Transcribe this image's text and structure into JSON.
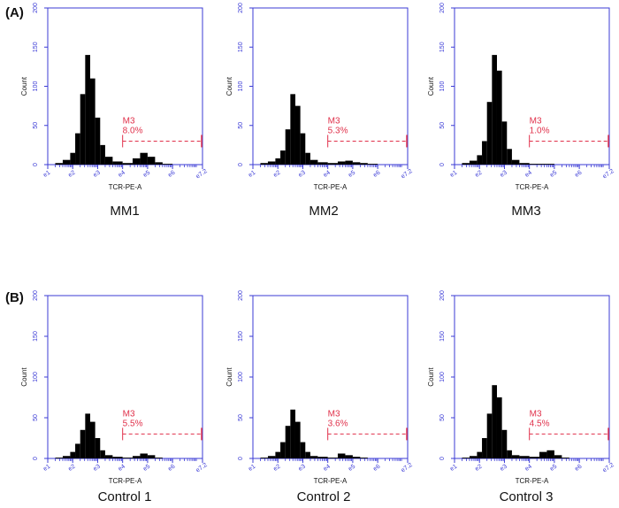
{
  "panel_labels": [
    "(A)",
    "(B)"
  ],
  "colors": {
    "axis": "#3b3bd6",
    "histogram": "#000000",
    "gate": "#e0304a"
  },
  "chart_data": [
    {
      "type": "histogram",
      "title": "MM1",
      "xlabel": "TCR-PE-A",
      "ylabel": "Count",
      "xscale": "log",
      "xlim": [
        1,
        7.2
      ],
      "ylim": [
        0,
        200
      ],
      "x_ticks": [
        "e1",
        "e2",
        "e3",
        "e4",
        "e5",
        "e6",
        "e7.2"
      ],
      "y_ticks": [
        "0",
        "50",
        "100",
        "150",
        "200"
      ],
      "gate": {
        "name": "M3",
        "percent": "8.0%",
        "x_range": [
          4,
          7.2
        ]
      },
      "histogram": {
        "x": [
          1.0,
          1.3,
          1.6,
          1.9,
          2.1,
          2.3,
          2.5,
          2.7,
          2.9,
          3.1,
          3.3,
          3.6,
          4.0,
          4.4,
          4.7,
          5.0,
          5.3,
          5.6,
          6.0
        ],
        "counts": [
          0,
          2,
          6,
          15,
          40,
          90,
          140,
          110,
          60,
          25,
          10,
          4,
          2,
          8,
          15,
          10,
          3,
          1,
          0
        ]
      }
    },
    {
      "type": "histogram",
      "title": "MM2",
      "xlabel": "TCR-PE-A",
      "ylabel": "Count",
      "xscale": "log",
      "xlim": [
        1,
        7.2
      ],
      "ylim": [
        0,
        200
      ],
      "x_ticks": [
        "e1",
        "e2",
        "e3",
        "e4",
        "e5",
        "e6",
        "e7.2"
      ],
      "y_ticks": [
        "0",
        "50",
        "100",
        "150",
        "200"
      ],
      "gate": {
        "name": "M3",
        "percent": "5.3%",
        "x_range": [
          4,
          7.2
        ]
      },
      "histogram": {
        "x": [
          1.0,
          1.3,
          1.6,
          1.9,
          2.1,
          2.3,
          2.5,
          2.7,
          2.9,
          3.1,
          3.3,
          3.6,
          4.0,
          4.4,
          4.7,
          5.0,
          5.3,
          5.6,
          6.0
        ],
        "counts": [
          0,
          2,
          4,
          8,
          18,
          45,
          90,
          75,
          40,
          15,
          6,
          3,
          2,
          4,
          5,
          3,
          2,
          1,
          0
        ]
      }
    },
    {
      "type": "histogram",
      "title": "MM3",
      "xlabel": "TCR-PE-A",
      "ylabel": "Count",
      "xscale": "log",
      "xlim": [
        1,
        7.2
      ],
      "ylim": [
        0,
        200
      ],
      "x_ticks": [
        "e1",
        "e2",
        "e3",
        "e4",
        "e5",
        "e6",
        "e7.2"
      ],
      "y_ticks": [
        "0",
        "50",
        "100",
        "150",
        "200"
      ],
      "gate": {
        "name": "M3",
        "percent": "1.0%",
        "x_range": [
          4,
          7.2
        ]
      },
      "histogram": {
        "x": [
          1.0,
          1.3,
          1.6,
          1.9,
          2.1,
          2.3,
          2.5,
          2.7,
          2.9,
          3.1,
          3.3,
          3.6,
          4.0,
          4.4,
          4.7,
          5.0,
          5.3,
          5.6,
          6.0
        ],
        "counts": [
          0,
          2,
          5,
          12,
          30,
          80,
          140,
          120,
          55,
          20,
          6,
          2,
          1,
          1,
          1,
          0,
          0,
          0,
          0
        ]
      }
    },
    {
      "type": "histogram",
      "title": "Control 1",
      "xlabel": "TCR-PE-A",
      "ylabel": "Count",
      "xscale": "log",
      "xlim": [
        1,
        7.2
      ],
      "ylim": [
        0,
        200
      ],
      "x_ticks": [
        "e1",
        "e2",
        "e3",
        "e4",
        "e5",
        "e6",
        "e7.2"
      ],
      "y_ticks": [
        "0",
        "50",
        "100",
        "150",
        "200"
      ],
      "gate": {
        "name": "M3",
        "percent": "5.5%",
        "x_range": [
          4,
          7.2
        ]
      },
      "histogram": {
        "x": [
          1.0,
          1.3,
          1.6,
          1.9,
          2.1,
          2.3,
          2.5,
          2.7,
          2.9,
          3.1,
          3.3,
          3.6,
          4.0,
          4.4,
          4.7,
          5.0,
          5.3,
          5.6,
          6.0
        ],
        "counts": [
          0,
          1,
          3,
          8,
          18,
          35,
          55,
          45,
          25,
          10,
          4,
          2,
          1,
          3,
          6,
          4,
          1,
          0,
          0
        ]
      }
    },
    {
      "type": "histogram",
      "title": "Control 2",
      "xlabel": "TCR-PE-A",
      "ylabel": "Count",
      "xscale": "log",
      "xlim": [
        1,
        7.2
      ],
      "ylim": [
        0,
        200
      ],
      "x_ticks": [
        "e1",
        "e2",
        "e3",
        "e4",
        "e5",
        "e6",
        "e7.2"
      ],
      "y_ticks": [
        "0",
        "50",
        "100",
        "150",
        "200"
      ],
      "gate": {
        "name": "M3",
        "percent": "3.6%",
        "x_range": [
          4,
          7.2
        ]
      },
      "histogram": {
        "x": [
          1.0,
          1.3,
          1.6,
          1.9,
          2.1,
          2.3,
          2.5,
          2.7,
          2.9,
          3.1,
          3.3,
          3.6,
          4.0,
          4.4,
          4.7,
          5.0,
          5.3,
          5.6,
          6.0
        ],
        "counts": [
          0,
          1,
          3,
          8,
          20,
          40,
          60,
          45,
          20,
          8,
          3,
          2,
          1,
          6,
          4,
          2,
          1,
          0,
          0
        ]
      }
    },
    {
      "type": "histogram",
      "title": "Control 3",
      "xlabel": "TCR-PE-A",
      "ylabel": "Count",
      "xscale": "log",
      "xlim": [
        1,
        7.2
      ],
      "ylim": [
        0,
        200
      ],
      "x_ticks": [
        "e1",
        "e2",
        "e3",
        "e4",
        "e5",
        "e6",
        "e7.2"
      ],
      "y_ticks": [
        "0",
        "50",
        "100",
        "150",
        "200"
      ],
      "gate": {
        "name": "M3",
        "percent": "4.5%",
        "x_range": [
          4,
          7.2
        ]
      },
      "histogram": {
        "x": [
          1.0,
          1.3,
          1.6,
          1.9,
          2.1,
          2.3,
          2.5,
          2.7,
          2.9,
          3.1,
          3.3,
          3.6,
          4.0,
          4.4,
          4.7,
          5.0,
          5.3,
          5.6,
          6.0
        ],
        "counts": [
          0,
          1,
          3,
          8,
          25,
          55,
          90,
          75,
          35,
          10,
          4,
          3,
          2,
          8,
          10,
          4,
          1,
          0,
          0
        ]
      }
    }
  ]
}
